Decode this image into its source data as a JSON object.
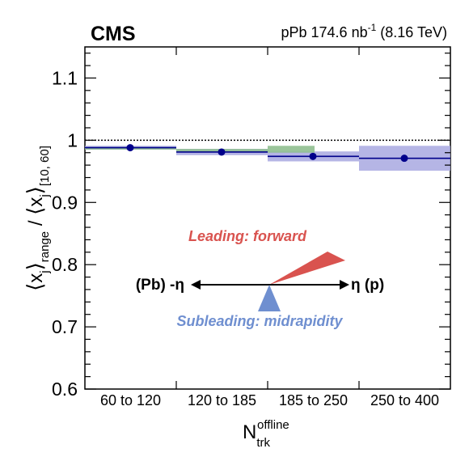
{
  "header": {
    "experiment": "CMS",
    "system": "pPb",
    "lumi": "174.6",
    "lumi_unit": "nb",
    "lumi_exp": "-1",
    "energy": "(8.16 TeV)"
  },
  "axes": {
    "ylabel_x": "x",
    "ylabel_sub1": "j",
    "ylabel_sub_range": "range",
    "ylabel_sep": "/",
    "ylabel_sub2": "j [10, 60]",
    "xlabel_main": "N",
    "xlabel_sub": "trk",
    "xlabel_sup": "offline"
  },
  "annotation": {
    "leading": "Leading: forward",
    "subleading": "Subleading: midrapidity",
    "left_label": "(Pb) -η",
    "right_label": "η (p)"
  },
  "colors": {
    "point": "#00008b",
    "blue_band": "#a8a8e0",
    "green_band": "#8fbf8f",
    "leading": "#d9534f",
    "subleading": "#6f8fd0"
  },
  "chart_data": {
    "type": "scatter",
    "categories": [
      "60 to 120",
      "120 to 185",
      "185 to 250",
      "250 to 400"
    ],
    "ylim": [
      0.6,
      1.15
    ],
    "yticks": [
      "0.6",
      "0.7",
      "0.8",
      "0.9",
      "1",
      "1.1"
    ],
    "reference_line": 1.0,
    "grid": false,
    "series": [
      {
        "values": [
          0.988,
          0.981,
          0.974,
          0.971
        ],
        "blue_band_low": [
          0.985,
          0.976,
          0.966,
          0.951
        ],
        "blue_band_high": [
          0.991,
          0.986,
          0.982,
          0.991
        ],
        "green_band_low": [
          0.985,
          0.981,
          0.98,
          null
        ],
        "green_band_high": [
          0.989,
          0.986,
          0.991,
          null
        ]
      }
    ]
  }
}
